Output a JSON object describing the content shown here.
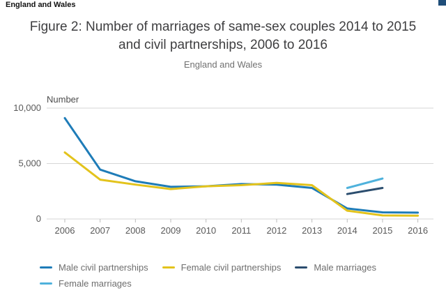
{
  "header": {
    "region_label": "England and Wales"
  },
  "title": "Figure 2: Number of marriages of same-sex couples 2014 to 2015 and civil partnerships, 2006 to 2016",
  "subtitle": "England and Wales",
  "chart_data": {
    "type": "line",
    "x": [
      2006,
      2007,
      2008,
      2009,
      2010,
      2011,
      2012,
      2013,
      2014,
      2015,
      2016
    ],
    "series": [
      {
        "name": "Male civil partnerships",
        "color": "#1e7cb8",
        "values": [
          9100,
          4450,
          3400,
          2900,
          2950,
          3150,
          3100,
          2800,
          950,
          600,
          570
        ]
      },
      {
        "name": "Female civil partnerships",
        "color": "#e3c31c",
        "values": [
          6000,
          3550,
          3100,
          2700,
          2950,
          3050,
          3250,
          3050,
          750,
          320,
          300
        ]
      },
      {
        "name": "Male marriages",
        "color": "#2b4d6e",
        "values": [
          null,
          null,
          null,
          null,
          null,
          null,
          null,
          null,
          2250,
          2800,
          null
        ]
      },
      {
        "name": "Female marriages",
        "color": "#4fb2dc",
        "values": [
          null,
          null,
          null,
          null,
          null,
          null,
          null,
          null,
          2800,
          3650,
          null
        ]
      }
    ],
    "ylabel": "Number",
    "xlabel": "",
    "yticks": [
      0,
      5000,
      10000
    ],
    "ytick_labels": [
      "0",
      "5,000",
      "10,000"
    ],
    "ylim": [
      0,
      10000
    ],
    "grid": true,
    "legend_position": "bottom",
    "grid_color": "#d6d6d6",
    "tick_color": "#bdbdbd"
  }
}
